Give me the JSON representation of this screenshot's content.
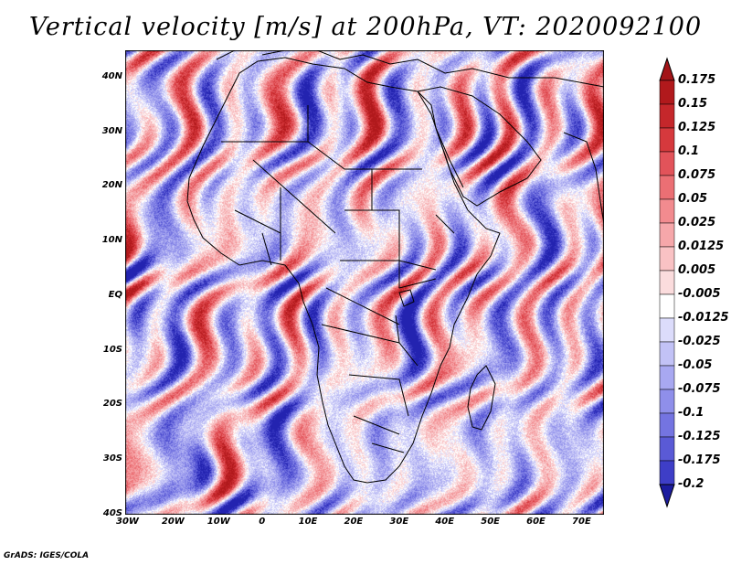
{
  "title": "Vertical velocity [m/s] at 200hPa, VT: 2020092100",
  "credit": "GrADS: IGES/COLA",
  "map": {
    "lon_range": [
      -30,
      75
    ],
    "lat_range": [
      -40,
      45
    ],
    "lon_ticks": [
      {
        "value": -30,
        "label": "30W"
      },
      {
        "value": -20,
        "label": "20W"
      },
      {
        "value": -10,
        "label": "10W"
      },
      {
        "value": 0,
        "label": "0"
      },
      {
        "value": 10,
        "label": "10E"
      },
      {
        "value": 20,
        "label": "20E"
      },
      {
        "value": 30,
        "label": "30E"
      },
      {
        "value": 40,
        "label": "40E"
      },
      {
        "value": 50,
        "label": "50E"
      },
      {
        "value": 60,
        "label": "60E"
      },
      {
        "value": 70,
        "label": "70E"
      }
    ],
    "lat_ticks": [
      {
        "value": 40,
        "label": "40N"
      },
      {
        "value": 30,
        "label": "30N"
      },
      {
        "value": 20,
        "label": "20N"
      },
      {
        "value": 10,
        "label": "10N"
      },
      {
        "value": 0,
        "label": "EQ"
      },
      {
        "value": -10,
        "label": "10S"
      },
      {
        "value": -20,
        "label": "20S"
      },
      {
        "value": -30,
        "label": "30S"
      },
      {
        "value": -40,
        "label": "40S"
      }
    ]
  },
  "colorbar": {
    "levels": [
      {
        "label": "0.175",
        "color": "#b1191c"
      },
      {
        "label": "0.15",
        "color": "#c5272b"
      },
      {
        "label": "0.125",
        "color": "#d6393d"
      },
      {
        "label": "0.1",
        "color": "#e2535a"
      },
      {
        "label": "0.075",
        "color": "#eb6f74"
      },
      {
        "label": "0.05",
        "color": "#f28b8f"
      },
      {
        "label": "0.025",
        "color": "#f6a7aa"
      },
      {
        "label": "0.0125",
        "color": "#f9c2c4"
      },
      {
        "label": "0.005",
        "color": "#fbdcdd"
      },
      {
        "label": "-0.005",
        "color": "#ffffff"
      },
      {
        "label": "-0.0125",
        "color": "#dcdcfb"
      },
      {
        "label": "-0.025",
        "color": "#c2c2f6"
      },
      {
        "label": "-0.05",
        "color": "#a8a8f1"
      },
      {
        "label": "-0.075",
        "color": "#8f8fea"
      },
      {
        "label": "-0.1",
        "color": "#7474e1"
      },
      {
        "label": "-0.125",
        "color": "#5a5ad6"
      },
      {
        "label": "-0.175",
        "color": "#3e3ec7"
      },
      {
        "label": "-0.2",
        "color": "#2323b0"
      }
    ],
    "top_color": "#a31418",
    "bottom_color": "#1c1c9e"
  },
  "style": {
    "positive_color": "#f08a8a",
    "negative_color": "#8f8fe8",
    "strong_positive": "#c0282c",
    "strong_negative": "#3b3bc2",
    "coast_color": "#000000"
  }
}
